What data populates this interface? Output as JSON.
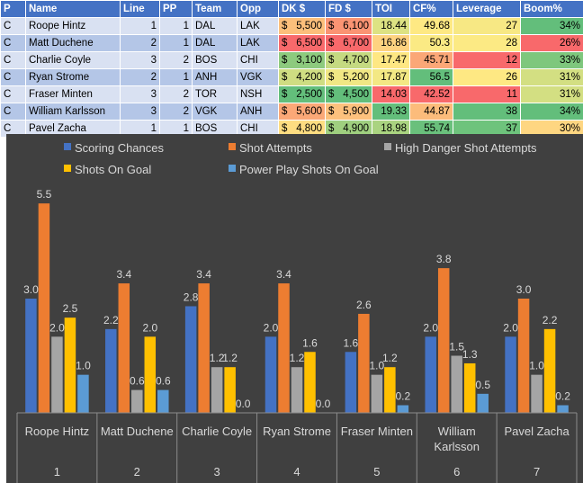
{
  "table": {
    "headers": [
      "P",
      "Name",
      "Line",
      "PP",
      "Team",
      "Opp",
      "DK $",
      "FD $",
      "TOI",
      "CF%",
      "Leverage",
      "Boom%"
    ],
    "rows": [
      {
        "p": "C",
        "name": "Roope Hintz",
        "line": "1",
        "pp": "1",
        "team": "DAL",
        "opp": "LAK",
        "dk": "5,500",
        "fd": "6,100",
        "toi": "18.44",
        "cf": "49.68",
        "leverage": "27",
        "boom": "34%"
      },
      {
        "p": "C",
        "name": "Matt Duchene",
        "line": "2",
        "pp": "1",
        "team": "DAL",
        "opp": "LAK",
        "dk": "6,500",
        "fd": "6,700",
        "toi": "16.86",
        "cf": "50.3",
        "leverage": "28",
        "boom": "26%"
      },
      {
        "p": "C",
        "name": "Charlie Coyle",
        "line": "3",
        "pp": "2",
        "team": "BOS",
        "opp": "CHI",
        "dk": "3,100",
        "fd": "4,700",
        "toi": "17.47",
        "cf": "45.71",
        "leverage": "12",
        "boom": "33%"
      },
      {
        "p": "C",
        "name": "Ryan Strome",
        "line": "2",
        "pp": "1",
        "team": "ANH",
        "opp": "VGK",
        "dk": "4,200",
        "fd": "5,200",
        "toi": "17.87",
        "cf": "56.5",
        "leverage": "26",
        "boom": "31%"
      },
      {
        "p": "C",
        "name": "Fraser Minten",
        "line": "3",
        "pp": "2",
        "team": "TOR",
        "opp": "NSH",
        "dk": "2,500",
        "fd": "4,500",
        "toi": "14.03",
        "cf": "42.52",
        "leverage": "11",
        "boom": "31%"
      },
      {
        "p": "C",
        "name": "William Karlsson",
        "line": "3",
        "pp": "2",
        "team": "VGK",
        "opp": "ANH",
        "dk": "5,600",
        "fd": "5,900",
        "toi": "19.33",
        "cf": "44.87",
        "leverage": "38",
        "boom": "34%"
      },
      {
        "p": "C",
        "name": "Pavel Zacha",
        "line": "1",
        "pp": "1",
        "team": "BOS",
        "opp": "CHI",
        "dk": "4,800",
        "fd": "4,900",
        "toi": "18.98",
        "cf": "55.74",
        "leverage": "37",
        "boom": "30%"
      }
    ],
    "currency_symbol": "$",
    "cell_colors": {
      "dk": [
        "#fcbf7b",
        "#f8696b",
        "#8dca7e",
        "#cfdd82",
        "#63be7b",
        "#fba877",
        "#fedd81"
      ],
      "fd": [
        "#fa9473",
        "#f8696b",
        "#c5da81",
        "#f1e784",
        "#63be7b",
        "#fdc17d",
        "#9fcf7f"
      ],
      "toi": [
        "#dde283",
        "#fed280",
        "#fee783",
        "#f3e884",
        "#f8696b",
        "#63be7b",
        "#aad380"
      ],
      "cf": [
        "#fee983",
        "#fbea84",
        "#fba777",
        "#63be7b",
        "#f8696b",
        "#fcbc7b",
        "#6ac07c"
      ],
      "leverage": [
        "#f7e884",
        "#fcea84",
        "#f8696b",
        "#fee883",
        "#f8696b",
        "#63be7b",
        "#6ec37c"
      ],
      "boom": [
        "#63be7b",
        "#f8696b",
        "#7ec77d",
        "#d3df82",
        "#d3df82",
        "#63be7b",
        "#fed681"
      ]
    }
  },
  "chart_data": {
    "type": "bar",
    "categories": [
      {
        "name": "Roope Hintz",
        "index": "1"
      },
      {
        "name": "Matt Duchene",
        "index": "2"
      },
      {
        "name": "Charlie Coyle",
        "index": "3"
      },
      {
        "name": "Ryan Strome",
        "index": "4"
      },
      {
        "name": "Fraser Minten",
        "index": "5"
      },
      {
        "name": "William Karlsson",
        "index": "6"
      },
      {
        "name": "Pavel Zacha",
        "index": "7"
      }
    ],
    "series": [
      {
        "name": "Scoring Chances",
        "color": "#4472c4",
        "values": [
          3.0,
          2.2,
          2.8,
          2.0,
          1.6,
          2.0,
          2.0
        ]
      },
      {
        "name": "Shot Attempts",
        "color": "#ed7d31",
        "values": [
          5.5,
          3.4,
          3.4,
          3.4,
          2.6,
          3.8,
          3.0
        ]
      },
      {
        "name": "High Danger Shot Attempts",
        "color": "#a5a5a5",
        "values": [
          2.0,
          0.6,
          1.2,
          1.2,
          1.0,
          1.5,
          1.0
        ]
      },
      {
        "name": "Shots On Goal",
        "color": "#ffc000",
        "values": [
          2.5,
          2.0,
          1.2,
          1.6,
          1.2,
          1.3,
          2.2
        ]
      },
      {
        "name": "Power Play Shots On Goal",
        "color": "#5b9bd5",
        "values": [
          1.0,
          0.6,
          0.0,
          0.0,
          0.2,
          0.5,
          0.2
        ]
      }
    ],
    "ylim": [
      0,
      6
    ],
    "grid": false,
    "legend": "top",
    "title": "",
    "xlabel": "",
    "ylabel": ""
  }
}
